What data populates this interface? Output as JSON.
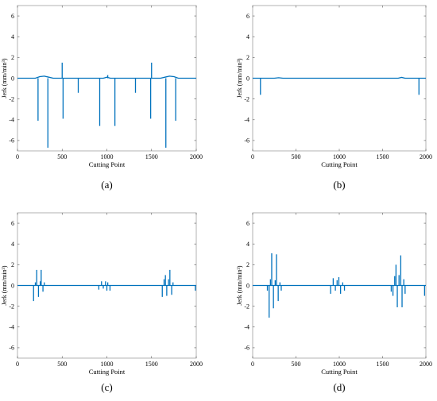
{
  "colors": {
    "series": "#0072bd",
    "axis": "#a0a0a0",
    "text": "#000000"
  },
  "chart_data": [
    {
      "type": "line",
      "panel_label": "(a)",
      "xlabel": "Cutting Point",
      "ylabel": "Jerk (mm/min³)",
      "xlim": [
        0,
        2000
      ],
      "ylim": [
        -7,
        7
      ],
      "xticks": [
        0,
        500,
        1000,
        1500,
        2000
      ],
      "yticks": [
        -6,
        -4,
        -2,
        0,
        2,
        4,
        6
      ],
      "grid": false,
      "baseline": [
        [
          0,
          0
        ],
        [
          200,
          0
        ],
        [
          250,
          0.15
        ],
        [
          300,
          0.2
        ],
        [
          350,
          0.1
        ],
        [
          400,
          0
        ],
        [
          960,
          0
        ],
        [
          980,
          0.05
        ],
        [
          1000,
          0.1
        ],
        [
          1020,
          0.05
        ],
        [
          1040,
          0
        ],
        [
          1600,
          0
        ],
        [
          1650,
          0.1
        ],
        [
          1700,
          0.2
        ],
        [
          1750,
          0.15
        ],
        [
          1800,
          0
        ],
        [
          2000,
          0
        ]
      ],
      "spikes": [
        [
          230,
          -4.1
        ],
        [
          340,
          -6.7
        ],
        [
          500,
          1.5
        ],
        [
          510,
          -3.9
        ],
        [
          680,
          -1.4
        ],
        [
          920,
          -4.6
        ],
        [
          1010,
          0.3
        ],
        [
          1090,
          -4.6
        ],
        [
          1320,
          -1.4
        ],
        [
          1500,
          1.5
        ],
        [
          1490,
          -3.9
        ],
        [
          1660,
          -6.7
        ],
        [
          1770,
          -4.1
        ]
      ]
    },
    {
      "type": "line",
      "panel_label": "(b)",
      "xlabel": "Cutting Point",
      "ylabel": "Jerk (mm/min³)",
      "xlim": [
        0,
        2000
      ],
      "ylim": [
        -7,
        7
      ],
      "xticks": [
        0,
        500,
        1000,
        1500,
        2000
      ],
      "yticks": [
        -6,
        -4,
        -2,
        0,
        2,
        4,
        6
      ],
      "grid": false,
      "baseline": [
        [
          0,
          0
        ],
        [
          250,
          0
        ],
        [
          300,
          0.05
        ],
        [
          350,
          0
        ],
        [
          1680,
          0
        ],
        [
          1720,
          0.08
        ],
        [
          1760,
          0
        ],
        [
          2000,
          0
        ]
      ],
      "spikes": [
        [
          90,
          -1.6
        ],
        [
          1920,
          -1.6
        ]
      ]
    },
    {
      "type": "line",
      "panel_label": "(c)",
      "xlabel": "Cutting Point",
      "ylabel": "Jerk (mm/min³)",
      "xlim": [
        0,
        2000
      ],
      "ylim": [
        -7,
        7
      ],
      "xticks": [
        0,
        500,
        1000,
        1500,
        2000
      ],
      "yticks": [
        -6,
        -4,
        -2,
        0,
        2,
        4,
        6
      ],
      "grid": false,
      "baseline": [
        [
          0,
          0
        ],
        [
          2000,
          0
        ]
      ],
      "spikes": [
        [
          180,
          -1.5
        ],
        [
          200,
          0.3
        ],
        [
          215,
          1.5
        ],
        [
          235,
          -1.1
        ],
        [
          255,
          0.4
        ],
        [
          265,
          1.5
        ],
        [
          285,
          -0.6
        ],
        [
          300,
          0.3
        ],
        [
          910,
          -0.4
        ],
        [
          940,
          0.4
        ],
        [
          960,
          -0.3
        ],
        [
          985,
          0.4
        ],
        [
          1000,
          -0.5
        ],
        [
          1010,
          0.3
        ],
        [
          1035,
          -0.5
        ],
        [
          1620,
          -1.1
        ],
        [
          1640,
          0.6
        ],
        [
          1655,
          1.0
        ],
        [
          1670,
          -1.0
        ],
        [
          1690,
          0.6
        ],
        [
          1705,
          1.5
        ],
        [
          1725,
          -0.9
        ],
        [
          1740,
          0.3
        ],
        [
          1990,
          -0.5
        ]
      ]
    },
    {
      "type": "line",
      "panel_label": "(d)",
      "xlabel": "Cutting Point",
      "ylabel": "Jerk (mm/min³)",
      "xlim": [
        0,
        2000
      ],
      "ylim": [
        -7,
        7
      ],
      "xticks": [
        0,
        500,
        1000,
        1500,
        2000
      ],
      "yticks": [
        -6,
        -4,
        -2,
        0,
        2,
        4,
        6
      ],
      "grid": false,
      "baseline": [
        [
          0,
          0
        ],
        [
          2000,
          0
        ]
      ],
      "spikes": [
        [
          170,
          -0.5
        ],
        [
          190,
          -3.1
        ],
        [
          205,
          0.6
        ],
        [
          220,
          3.1
        ],
        [
          240,
          -2.2
        ],
        [
          260,
          0.5
        ],
        [
          275,
          3.0
        ],
        [
          295,
          -1.5
        ],
        [
          315,
          0.3
        ],
        [
          330,
          -0.5
        ],
        [
          900,
          -0.8
        ],
        [
          930,
          0.7
        ],
        [
          955,
          -0.5
        ],
        [
          975,
          0.5
        ],
        [
          995,
          0.8
        ],
        [
          1015,
          -0.8
        ],
        [
          1040,
          0.3
        ],
        [
          1060,
          -0.5
        ],
        [
          1600,
          -0.6
        ],
        [
          1620,
          -1.0
        ],
        [
          1640,
          0.9
        ],
        [
          1655,
          2.0
        ],
        [
          1670,
          -2.1
        ],
        [
          1690,
          1.0
        ],
        [
          1710,
          2.9
        ],
        [
          1725,
          -2.1
        ],
        [
          1745,
          0.6
        ],
        [
          1760,
          -0.8
        ],
        [
          1985,
          -1.0
        ]
      ]
    }
  ]
}
